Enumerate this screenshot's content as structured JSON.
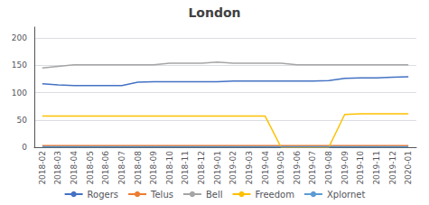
{
  "chart_data": {
    "type": "line",
    "title": "London",
    "categories": [
      "2018-02",
      "2018-03",
      "2018-04",
      "2018-05",
      "2018-06",
      "2018-07",
      "2018-08",
      "2018-09",
      "2018-10",
      "2018-11",
      "2018-12",
      "2019-01",
      "2019-02",
      "2019-03",
      "2019-04",
      "2019-05",
      "2019-06",
      "2019-07",
      "2019-08",
      "2019-09",
      "2019-10",
      "2019-11",
      "2019-12",
      "2020-01"
    ],
    "series": [
      {
        "name": "Rogers",
        "color": "#4472C4",
        "values": [
          116,
          114,
          113,
          113,
          113,
          113,
          119,
          120,
          120,
          120,
          120,
          120,
          121,
          121,
          121,
          121,
          121,
          121,
          122,
          126,
          127,
          127,
          128,
          129
        ]
      },
      {
        "name": "Telus",
        "color": "#ED7D31",
        "values": [
          3,
          3,
          3,
          3,
          3,
          3,
          3,
          3,
          3,
          3,
          3,
          3,
          3,
          3,
          3,
          3,
          3,
          3,
          3,
          3,
          3,
          3,
          3,
          3
        ]
      },
      {
        "name": "Bell",
        "color": "#A5A5A5",
        "values": [
          145,
          148,
          151,
          151,
          151,
          151,
          151,
          151,
          154,
          154,
          154,
          156,
          154,
          154,
          154,
          154,
          151,
          151,
          151,
          151,
          151,
          151,
          151,
          151
        ]
      },
      {
        "name": "Freedom",
        "color": "#FFC000",
        "values": [
          57,
          57,
          57,
          57,
          57,
          57,
          57,
          57,
          57,
          57,
          57,
          57,
          57,
          57,
          57,
          0,
          0,
          0,
          0,
          60,
          61,
          61,
          61,
          61
        ]
      },
      {
        "name": "Xplornet",
        "color": "#5B9BD5",
        "values": [
          1,
          1,
          1,
          1,
          1,
          1,
          1,
          1,
          1,
          1,
          1,
          1,
          1,
          1,
          1,
          1,
          1,
          1,
          1,
          1,
          1,
          1,
          1,
          1
        ]
      }
    ],
    "ylim": [
      0,
      220
    ],
    "yticks": [
      0,
      50,
      100,
      150,
      200
    ],
    "grid": true,
    "legend": "bottom"
  }
}
